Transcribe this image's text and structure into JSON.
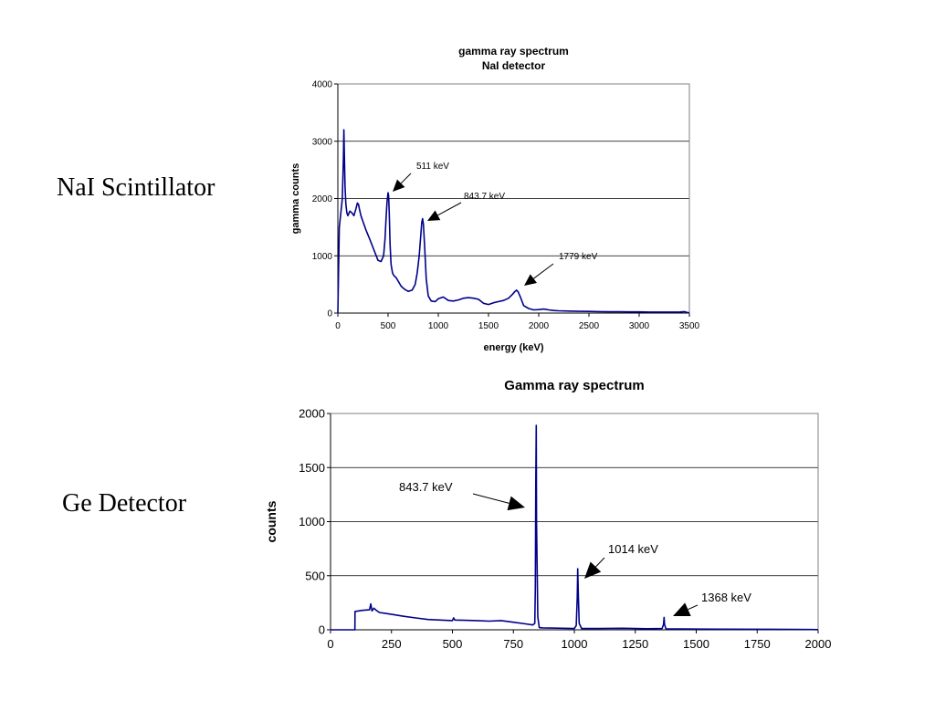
{
  "labels": {
    "top": "NaI Scintillator",
    "bottom": "Ge Detector"
  },
  "colors": {
    "series": "#00008b",
    "axis": "#000000",
    "grid": "#000000"
  },
  "chart_data": [
    {
      "type": "line",
      "title": "gamma ray spectrum",
      "subtitle": "NaI detector",
      "xlabel": "energy (keV)",
      "ylabel": "gamma counts",
      "xlim": [
        0,
        3500
      ],
      "ylim": [
        0,
        4000
      ],
      "xticks": [
        0,
        500,
        1000,
        1500,
        2000,
        2500,
        3000,
        3500
      ],
      "yticks": [
        0,
        1000,
        2000,
        3000,
        4000
      ],
      "grid": "horizontal",
      "x": [
        0,
        15,
        30,
        45,
        55,
        60,
        65,
        72,
        80,
        90,
        100,
        120,
        140,
        160,
        180,
        195,
        205,
        215,
        230,
        250,
        280,
        320,
        360,
        400,
        430,
        455,
        470,
        480,
        490,
        500,
        505,
        512,
        520,
        530,
        545,
        560,
        580,
        600,
        630,
        660,
        700,
        740,
        770,
        790,
        810,
        825,
        835,
        844,
        852,
        865,
        880,
        900,
        930,
        970,
        1000,
        1050,
        1100,
        1150,
        1200,
        1250,
        1300,
        1350,
        1400,
        1450,
        1500,
        1550,
        1600,
        1650,
        1700,
        1740,
        1765,
        1779,
        1795,
        1820,
        1850,
        1900,
        1950,
        2000,
        2050,
        2100,
        2150,
        2200,
        2300,
        2400,
        2500,
        2600,
        2700,
        2800,
        2900,
        3000,
        3100,
        3200,
        3300,
        3400,
        3450,
        3480,
        3500
      ],
      "values": [
        0,
        1500,
        1750,
        2000,
        2700,
        3200,
        2800,
        2200,
        1900,
        1750,
        1700,
        1780,
        1750,
        1700,
        1820,
        1920,
        1900,
        1820,
        1700,
        1600,
        1450,
        1280,
        1100,
        920,
        900,
        1000,
        1300,
        1650,
        1950,
        2100,
        2050,
        1750,
        1200,
        850,
        700,
        650,
        620,
        560,
        470,
        420,
        380,
        400,
        500,
        700,
        1000,
        1350,
        1580,
        1650,
        1550,
        1150,
        600,
        300,
        210,
        200,
        250,
        280,
        220,
        210,
        230,
        260,
        270,
        260,
        240,
        170,
        150,
        180,
        200,
        220,
        260,
        330,
        380,
        400,
        370,
        270,
        130,
        80,
        55,
        60,
        70,
        55,
        45,
        40,
        35,
        30,
        28,
        25,
        23,
        22,
        20,
        20,
        18,
        18,
        18,
        18,
        25,
        10,
        5
      ],
      "annotations": [
        {
          "text": "511 keV",
          "x": 511,
          "y": 2100
        },
        {
          "text": "843.7 keV",
          "x": 843.7,
          "y": 1650
        },
        {
          "text": "1779 keV",
          "x": 1779,
          "y": 400
        }
      ]
    },
    {
      "type": "line",
      "title": "Gamma ray spectrum",
      "ylabel": "counts",
      "xlim": [
        0,
        2000
      ],
      "ylim": [
        0,
        2000
      ],
      "xticks": [
        0,
        250,
        500,
        750,
        1000,
        1250,
        1500,
        1750,
        2000
      ],
      "yticks": [
        0,
        500,
        1000,
        1500,
        2000
      ],
      "grid": "horizontal",
      "x": [
        0,
        95,
        100,
        100.5,
        130,
        160,
        165,
        170,
        178,
        185,
        200,
        230,
        260,
        300,
        350,
        400,
        450,
        500,
        505,
        510,
        550,
        600,
        650,
        700,
        750,
        800,
        830,
        838,
        840,
        842,
        843.7,
        845,
        847,
        850,
        856,
        870,
        900,
        950,
        1000,
        1008,
        1012,
        1014,
        1016,
        1020,
        1030,
        1100,
        1200,
        1300,
        1360,
        1366,
        1368,
        1370,
        1376,
        1450,
        1600,
        1800,
        1900,
        2000
      ],
      "values": [
        0,
        0,
        0,
        170,
        180,
        185,
        240,
        175,
        200,
        185,
        160,
        150,
        140,
        125,
        110,
        95,
        90,
        85,
        110,
        90,
        88,
        85,
        80,
        85,
        70,
        55,
        45,
        60,
        400,
        1360,
        1890,
        1000,
        680,
        120,
        20,
        18,
        16,
        14,
        12,
        40,
        300,
        565,
        350,
        60,
        12,
        12,
        14,
        10,
        12,
        50,
        115,
        50,
        8,
        8,
        6,
        5,
        4,
        2
      ],
      "annotations": [
        {
          "text": "843.7 keV",
          "x": 843.7,
          "y": 1890
        },
        {
          "text": "1014 keV",
          "x": 1014,
          "y": 565
        },
        {
          "text": "1368 keV",
          "x": 1368,
          "y": 115
        }
      ]
    }
  ]
}
